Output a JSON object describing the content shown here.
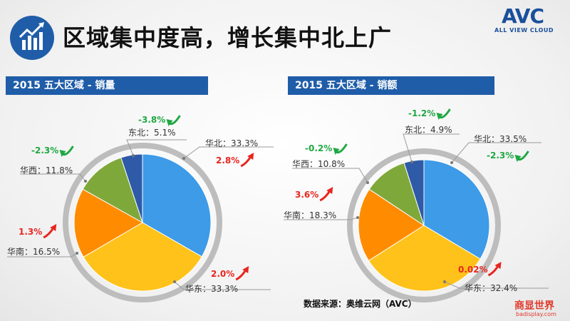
{
  "header": {
    "title": "区域集中度高，增长集中北上广",
    "logo_text": "AVC",
    "logo_tagline": "ALL VIEW CLOUD",
    "icon": "bar-chart-growth-icon"
  },
  "source": "数据来源：奥维云网（AVC）",
  "watermark": {
    "main": "商显世界",
    "sub": "badisplay.com"
  },
  "colors": {
    "header_bar": "#1f5da8",
    "up_arrow": "#e8251f",
    "down_arrow": "#1fa843",
    "slice_华北": "#3d9be8",
    "slice_华东": "#ffc21a",
    "slice_华南": "#ff8c00",
    "slice_华西": "#7fa83a",
    "slice_东北": "#2e5aa8"
  },
  "chart_data": [
    {
      "type": "pie",
      "title": "2015 五大区域 - 销量",
      "slices": [
        {
          "name": "华北",
          "label": "华北：33.3%",
          "value": 33.3,
          "change": "2.8%",
          "direction": "up"
        },
        {
          "name": "华东",
          "label": "华东：33.3%",
          "value": 33.3,
          "change": "2.0%",
          "direction": "up"
        },
        {
          "name": "华南",
          "label": "华南：16.5%",
          "value": 16.5,
          "change": "1.3%",
          "direction": "up"
        },
        {
          "name": "华西",
          "label": "华西：11.8%",
          "value": 11.8,
          "change": "-2.3%",
          "direction": "down"
        },
        {
          "name": "东北",
          "label": "东北：5.1%",
          "value": 5.1,
          "change": "-3.8%",
          "direction": "down"
        }
      ]
    },
    {
      "type": "pie",
      "title": "2015 五大区域 - 销额",
      "slices": [
        {
          "name": "华北",
          "label": "华北：33.5%",
          "value": 33.5,
          "change": "-2.3%",
          "direction": "down"
        },
        {
          "name": "华东",
          "label": "华东：32.4%",
          "value": 32.4,
          "change": "0.02%",
          "direction": "up"
        },
        {
          "name": "华南",
          "label": "华南：18.3%",
          "value": 18.3,
          "change": "3.6%",
          "direction": "up"
        },
        {
          "name": "华西",
          "label": "华西：10.8%",
          "value": 10.8,
          "change": "-0.2%",
          "direction": "down"
        },
        {
          "name": "东北",
          "label": "东北：4.9%",
          "value": 4.9,
          "change": "-1.2%",
          "direction": "down"
        }
      ]
    }
  ]
}
